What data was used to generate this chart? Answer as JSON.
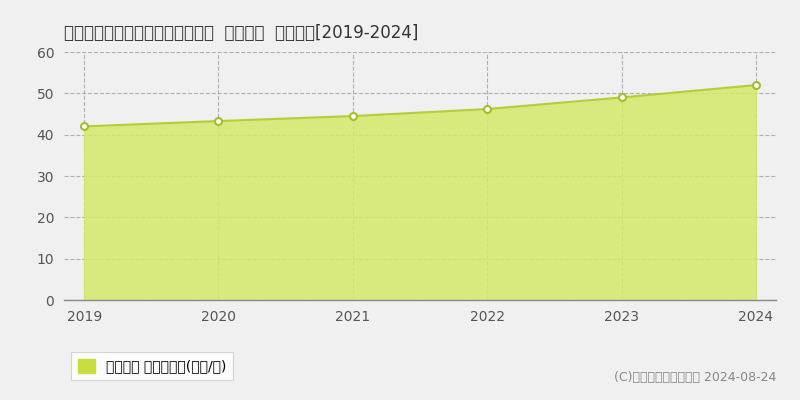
{
  "title": "大阪府高様市南庄所町９３番１外  地価公示  地価推移[2019-2024]",
  "years": [
    2019,
    2020,
    2021,
    2022,
    2023,
    2024
  ],
  "values": [
    42.0,
    43.3,
    44.5,
    46.2,
    49.0,
    52.0
  ],
  "ylim": [
    0,
    60
  ],
  "yticks": [
    0,
    10,
    20,
    30,
    40,
    50,
    60
  ],
  "fill_color": "#d4e96a",
  "fill_alpha": 0.85,
  "line_color": "#b8cc3a",
  "marker_color": "#ffffff",
  "marker_edge_color": "#a8bc2a",
  "background_color": "#f0f0f0",
  "plot_bg_color": "#f0f0f0",
  "grid_color": "#b0b0b0",
  "legend_label": "地価公示 平均坊単価(万円/坊)",
  "legend_color": "#c8dd40",
  "copyright_text": "(C)土地価格ドットコム 2024-08-24",
  "title_fontsize": 12,
  "tick_fontsize": 10,
  "legend_fontsize": 10,
  "copyright_fontsize": 9
}
